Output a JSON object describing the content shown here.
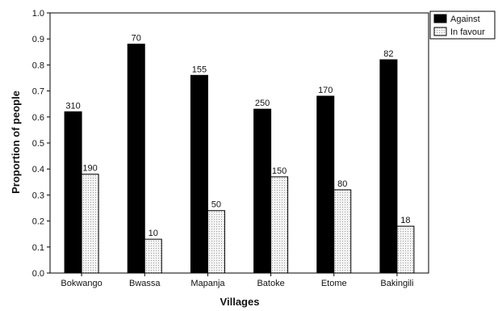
{
  "chart_data": {
    "type": "bar",
    "title": "",
    "xlabel": "Villages",
    "ylabel": "Proportion of people",
    "ylim": [
      0,
      1.0
    ],
    "yticks": [
      "0.0",
      "0.1",
      "0.2",
      "0.3",
      "0.4",
      "0.5",
      "0.6",
      "0.7",
      "0.8",
      "0.9",
      "1.0"
    ],
    "categories": [
      "Bokwango",
      "Bwassa",
      "Mapanja",
      "Batoke",
      "Etome",
      "Bakingili"
    ],
    "series": [
      {
        "name": "Against",
        "color": "#000000",
        "values": [
          0.62,
          0.88,
          0.76,
          0.63,
          0.68,
          0.82
        ],
        "labels": [
          "310",
          "70",
          "155",
          "250",
          "170",
          "82"
        ]
      },
      {
        "name": "In favour",
        "color": "#eeeeee",
        "values": [
          0.38,
          0.13,
          0.24,
          0.37,
          0.32,
          0.18
        ],
        "labels": [
          "190",
          "10",
          "50",
          "150",
          "80",
          "18"
        ]
      }
    ],
    "legend": "top-right",
    "grid": false
  }
}
